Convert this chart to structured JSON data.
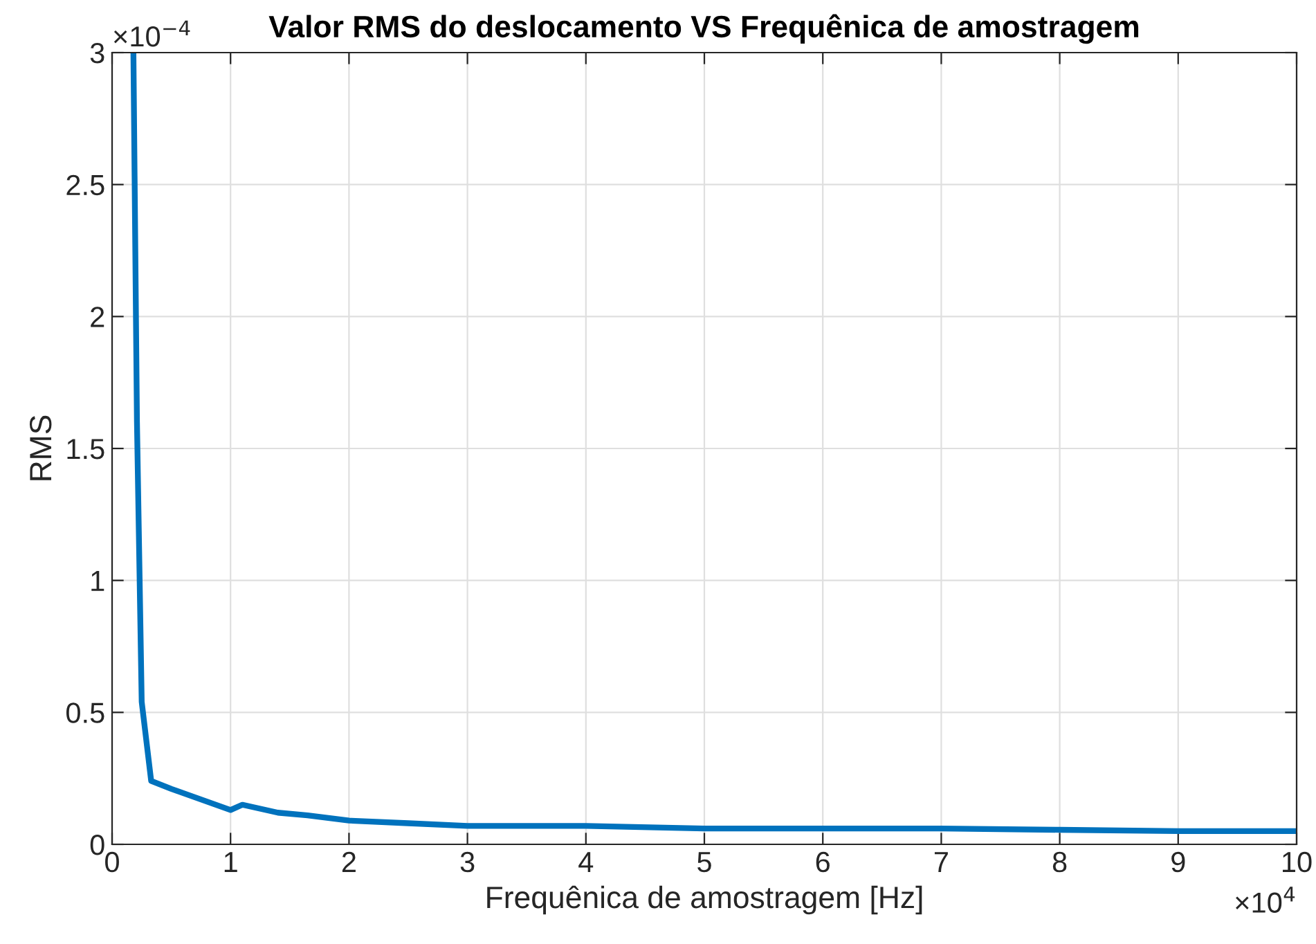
{
  "chart_data": {
    "type": "line",
    "title": "Valor RMS do deslocamento VS Frequênica de amostragem",
    "xlabel": "Frequênica de amostragem [Hz]",
    "ylabel": "RMS",
    "annotations": [
      "×10$^{−4}$",
      "×10$^{4}$"
    ],
    "x": [
      0.18,
      0.21,
      0.25,
      0.33,
      0.5,
      1.0,
      1.1,
      1.4,
      1.65,
      2.0,
      2.5,
      3,
      4,
      5,
      6,
      7,
      8,
      9,
      10
    ],
    "series": [
      {
        "color": "#0072bd",
        "values": [
          3.0,
          1.6,
          0.54,
          0.24,
          0.21,
          0.13,
          0.15,
          0.12,
          0.11,
          0.09,
          0.08,
          0.07,
          0.07,
          0.06,
          0.06,
          0.06,
          0.055,
          0.05,
          0.05
        ]
      }
    ],
    "xlim": [
      0,
      10
    ],
    "ylim": [
      0,
      3
    ],
    "xticks": [
      0,
      1,
      2,
      3,
      4,
      5,
      6,
      7,
      8,
      9,
      10
    ],
    "yticks": [
      0,
      0.5,
      1,
      1.5,
      2,
      2.5,
      3
    ],
    "grid": true,
    "line_style": "solid",
    "marker": "none"
  }
}
